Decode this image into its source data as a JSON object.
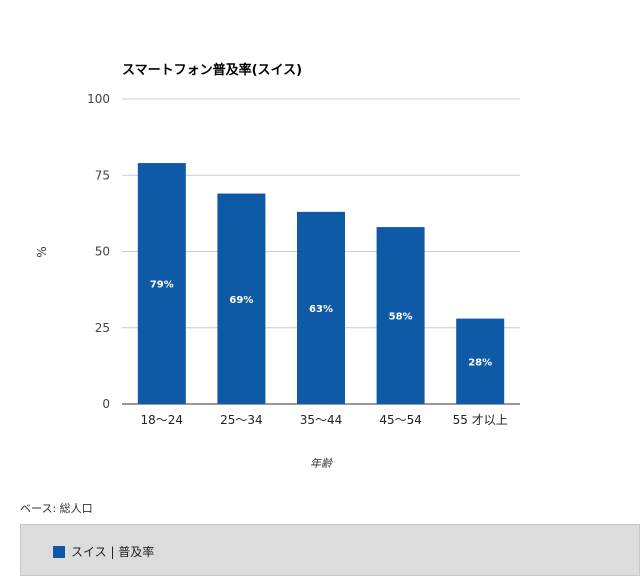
{
  "chart_data": {
    "type": "bar",
    "title": "スマートフォン普及率(スイス)",
    "categories": [
      "18～24",
      "25～34",
      "35～44",
      "45～54",
      "55 才以上"
    ],
    "series": [
      {
        "name": "スイス | 普及率",
        "values": [
          79,
          69,
          63,
          58,
          28
        ],
        "color": "#0f5aa6"
      }
    ],
    "data_labels": [
      "79%",
      "69%",
      "63%",
      "58%",
      "28%"
    ],
    "xlabel": "年齢",
    "ylabel": "%",
    "ylim": [
      0,
      100
    ],
    "yticks": [
      0,
      25,
      50,
      75,
      100
    ],
    "grid": true,
    "legend_position": "bottom"
  },
  "note": "ベース: 総人口"
}
